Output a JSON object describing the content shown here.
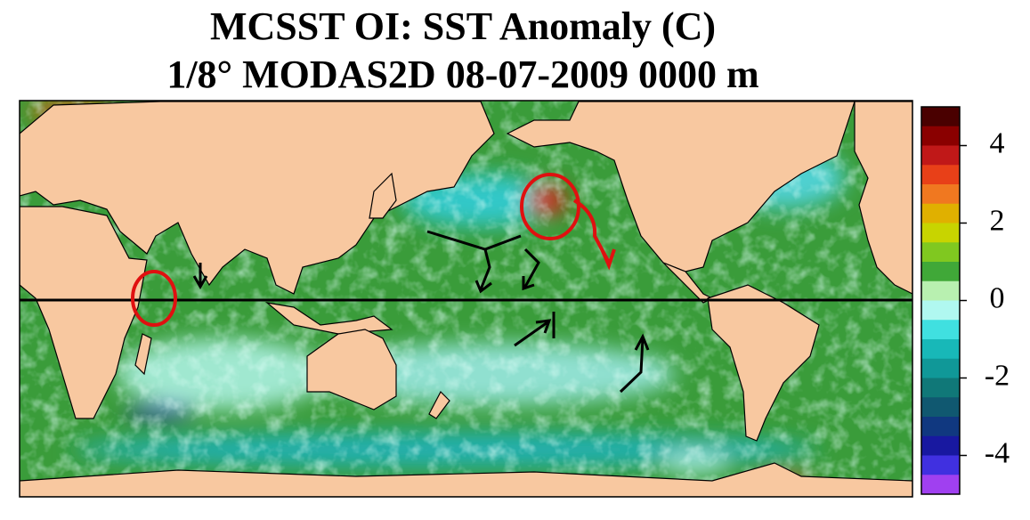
{
  "title": "MCSST OI:  SST Anomaly (C)",
  "subtitle": "1/8° MODAS2D 08-07-2009 0000 m",
  "colorbar": {
    "ylim": [
      -5,
      5
    ],
    "yticks": [
      -4,
      -2,
      0,
      2,
      4
    ],
    "colors": [
      "#4a0000",
      "#8a0000",
      "#c01818",
      "#e84018",
      "#f07820",
      "#e0b000",
      "#c8d400",
      "#80c820",
      "#40a838",
      "#b8f0b0",
      "#b0f8f0",
      "#40e0e0",
      "#18b8b8",
      "#109898",
      "#107878",
      "#105870",
      "#103880",
      "#1818a0",
      "#4030e0",
      "#a040f0"
    ]
  }
}
